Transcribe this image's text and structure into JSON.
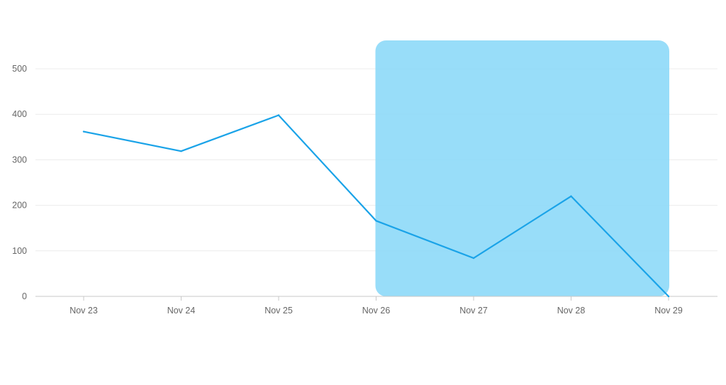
{
  "chart_data": {
    "type": "line",
    "categories": [
      "Nov 23",
      "Nov 24",
      "Nov 25",
      "Nov 26",
      "Nov 27",
      "Nov 28",
      "Nov 29"
    ],
    "series": [
      {
        "values": [
          362,
          319,
          398,
          166,
          84,
          220,
          0
        ]
      }
    ],
    "ylim": [
      0,
      500
    ],
    "yticks": [
      0,
      100,
      200,
      300,
      400,
      500
    ],
    "grid": true,
    "highlight_range": {
      "from": "Nov 26",
      "to": "Nov 29"
    },
    "title": "",
    "xlabel": "",
    "ylabel": ""
  },
  "colors": {
    "series": "#1aa3e8",
    "highlight": "#8dd9f8",
    "grid": "#ececec",
    "axis": "#c8c8c8",
    "tick_label": "#666666"
  }
}
